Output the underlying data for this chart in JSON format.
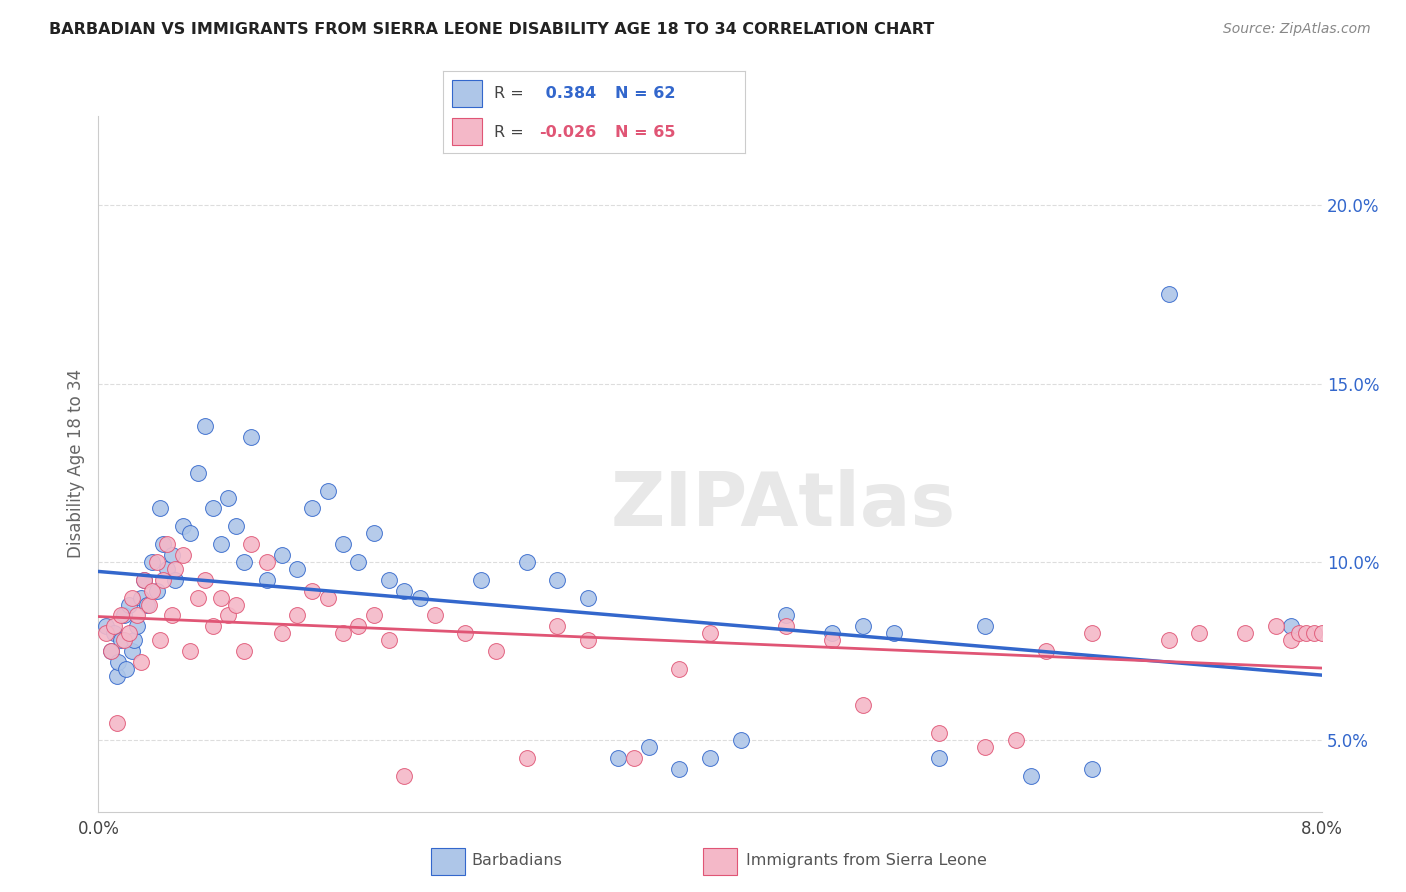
{
  "title": "BARBADIAN VS IMMIGRANTS FROM SIERRA LEONE DISABILITY AGE 18 TO 34 CORRELATION CHART",
  "source": "Source: ZipAtlas.com",
  "ylabel": "Disability Age 18 to 34",
  "xlim": [
    0.0,
    8.0
  ],
  "ylim": [
    3.0,
    22.5
  ],
  "yticks_right": [
    5.0,
    10.0,
    15.0,
    20.0
  ],
  "blue_R": 0.384,
  "blue_N": 62,
  "pink_R": -0.026,
  "pink_N": 65,
  "blue_color": "#AEC6E8",
  "pink_color": "#F4B8C8",
  "blue_line_color": "#3367CC",
  "pink_line_color": "#E05575",
  "watermark": "ZIPAtlas",
  "background_color": "#FFFFFF",
  "grid_color": "#DDDDDD",
  "blue_x": [
    0.05,
    0.08,
    0.1,
    0.12,
    0.13,
    0.15,
    0.17,
    0.18,
    0.2,
    0.22,
    0.23,
    0.25,
    0.28,
    0.3,
    0.32,
    0.35,
    0.38,
    0.4,
    0.42,
    0.45,
    0.48,
    0.5,
    0.55,
    0.6,
    0.65,
    0.7,
    0.75,
    0.8,
    0.85,
    0.9,
    0.95,
    1.0,
    1.1,
    1.2,
    1.3,
    1.4,
    1.5,
    1.6,
    1.7,
    1.8,
    1.9,
    2.0,
    2.1,
    2.5,
    2.8,
    3.0,
    3.2,
    3.4,
    3.6,
    3.8,
    4.0,
    4.2,
    4.5,
    4.8,
    5.0,
    5.2,
    5.5,
    5.8,
    6.1,
    6.5,
    7.0,
    7.8
  ],
  "blue_y": [
    8.2,
    7.5,
    8.0,
    6.8,
    7.2,
    7.8,
    8.5,
    7.0,
    8.8,
    7.5,
    7.8,
    8.2,
    9.0,
    9.5,
    8.8,
    10.0,
    9.2,
    11.5,
    10.5,
    9.8,
    10.2,
    9.5,
    11.0,
    10.8,
    12.5,
    13.8,
    11.5,
    10.5,
    11.8,
    11.0,
    10.0,
    13.5,
    9.5,
    10.2,
    9.8,
    11.5,
    12.0,
    10.5,
    10.0,
    10.8,
    9.5,
    9.2,
    9.0,
    9.5,
    10.0,
    9.5,
    9.0,
    4.5,
    4.8,
    4.2,
    4.5,
    5.0,
    8.5,
    8.0,
    8.2,
    8.0,
    4.5,
    8.2,
    4.0,
    4.2,
    17.5,
    8.2
  ],
  "pink_x": [
    0.05,
    0.08,
    0.1,
    0.12,
    0.15,
    0.17,
    0.2,
    0.22,
    0.25,
    0.28,
    0.3,
    0.33,
    0.35,
    0.38,
    0.4,
    0.42,
    0.45,
    0.48,
    0.5,
    0.55,
    0.6,
    0.65,
    0.7,
    0.75,
    0.8,
    0.85,
    0.9,
    0.95,
    1.0,
    1.1,
    1.2,
    1.3,
    1.4,
    1.5,
    1.6,
    1.7,
    1.8,
    1.9,
    2.0,
    2.2,
    2.4,
    2.6,
    2.8,
    3.0,
    3.2,
    3.5,
    3.8,
    4.0,
    4.5,
    4.8,
    5.0,
    5.5,
    5.8,
    6.0,
    6.2,
    6.5,
    7.0,
    7.2,
    7.5,
    7.7,
    7.8,
    7.85,
    7.9,
    7.95,
    8.0
  ],
  "pink_y": [
    8.0,
    7.5,
    8.2,
    5.5,
    8.5,
    7.8,
    8.0,
    9.0,
    8.5,
    7.2,
    9.5,
    8.8,
    9.2,
    10.0,
    7.8,
    9.5,
    10.5,
    8.5,
    9.8,
    10.2,
    7.5,
    9.0,
    9.5,
    8.2,
    9.0,
    8.5,
    8.8,
    7.5,
    10.5,
    10.0,
    8.0,
    8.5,
    9.2,
    9.0,
    8.0,
    8.2,
    8.5,
    7.8,
    4.0,
    8.5,
    8.0,
    7.5,
    4.5,
    8.2,
    7.8,
    4.5,
    7.0,
    8.0,
    8.2,
    7.8,
    6.0,
    5.2,
    4.8,
    5.0,
    7.5,
    8.0,
    7.8,
    8.0,
    8.0,
    8.2,
    7.8,
    8.0,
    8.0,
    8.0,
    8.0
  ]
}
